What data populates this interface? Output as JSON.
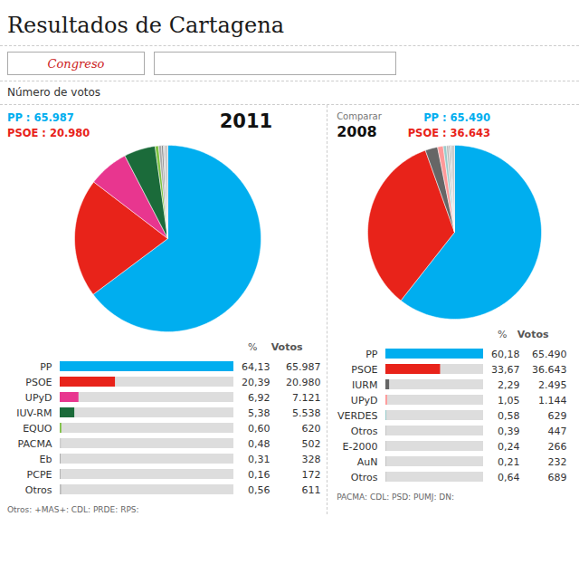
{
  "title": "Resultados de Cartagena",
  "subtitle": "Congreso",
  "annotations": [
    "Número de votos"
  ],
  "chart_data": [
    {
      "type": "pie",
      "title": "2011",
      "values": [
        65987,
        20980,
        7121,
        5538,
        620,
        502,
        328,
        172,
        611
      ],
      "colors": [
        "#00AEEF",
        "#E8231A",
        "#E8368F",
        "#1B6B3A",
        "#7DC242",
        "#AAAAAA",
        "#888888",
        "#999999",
        "#CCCCCC"
      ],
      "annotations": [
        {
          "text": "PP : 65.987",
          "color": "#00AEEF"
        },
        {
          "text": "PSOE : 20.980",
          "color": "#E8231A"
        }
      ]
    },
    {
      "type": "pie",
      "title": "2008",
      "subtitle": "Comparar",
      "values": [
        65490,
        36643,
        2495,
        1144,
        629,
        447,
        266,
        232,
        689
      ],
      "colors": [
        "#00AEEF",
        "#E8231A",
        "#666666",
        "#FF9999",
        "#99CCCC",
        "#BBBBBB",
        "#AAAAAA",
        "#999999",
        "#CCCCCC"
      ],
      "annotations": [
        {
          "text": "PP : 65.490",
          "color": "#00AEEF"
        },
        {
          "text": "PSOE : 36.643",
          "color": "#E8231A"
        }
      ]
    },
    {
      "type": "bar",
      "orientation": "horizontal",
      "tick_labels": "y",
      "categories": [
        "PP",
        "PSOE",
        "UPyD",
        "IUV-RM",
        "EQUO",
        "PACMA",
        "Eb",
        "PCPE",
        "Otros"
      ],
      "values": [
        64.13,
        20.39,
        6.92,
        5.38,
        0.6,
        0.48,
        0.31,
        0.16,
        0.56
      ],
      "value_labels": [
        "64,13",
        "20,39",
        "6,92",
        "5,38",
        "0,60",
        "0,48",
        "0,31",
        "0,16",
        "0,56"
      ],
      "votes": [
        65987,
        20980,
        7121,
        5538,
        620,
        502,
        328,
        172,
        611
      ],
      "vote_labels": [
        "65.987",
        "20.980",
        "7.121",
        "5.538",
        "620",
        "502",
        "328",
        "172",
        "611"
      ],
      "colors": [
        "#00AEEF",
        "#E8231A",
        "#E8368F",
        "#1B6B3A",
        "#7DC242",
        "#CCCCCC",
        "#AAAAAA",
        "#888888",
        "#BBBBBB"
      ],
      "xlim": [
        0,
        64.13
      ],
      "value_header": "%",
      "votes_header": "Votos",
      "note": "Otros: +MAS+: CDL: PRDE: RPS:"
    },
    {
      "type": "bar",
      "orientation": "horizontal",
      "tick_labels": "y",
      "categories": [
        "PP",
        "PSOE",
        "IURM",
        "UPyD",
        "VERDES",
        "Otros",
        "E-2000",
        "AuN",
        "Otros"
      ],
      "values": [
        60.18,
        33.67,
        2.29,
        1.05,
        0.58,
        0.39,
        0.24,
        0.21,
        0.64
      ],
      "value_labels": [
        "60,18",
        "33,67",
        "2,29",
        "1,05",
        "0,58",
        "0,39",
        "0,24",
        "0,21",
        "0,64"
      ],
      "votes": [
        65490,
        36643,
        2495,
        1144,
        629,
        447,
        266,
        232,
        689
      ],
      "vote_labels": [
        "65.490",
        "36.643",
        "2.495",
        "1.144",
        "629",
        "447",
        "266",
        "232",
        "689"
      ],
      "colors": [
        "#00AEEF",
        "#E8231A",
        "#666666",
        "#FF9999",
        "#99CCCC",
        "#BBBBBB",
        "#AAAAAA",
        "#999999",
        "#CCCCCC"
      ],
      "xlim": [
        0,
        60.18
      ],
      "value_header": "%",
      "votes_header": "Votos",
      "note": "PACMA: CDL: PSD: PUMJ: DN:"
    }
  ]
}
